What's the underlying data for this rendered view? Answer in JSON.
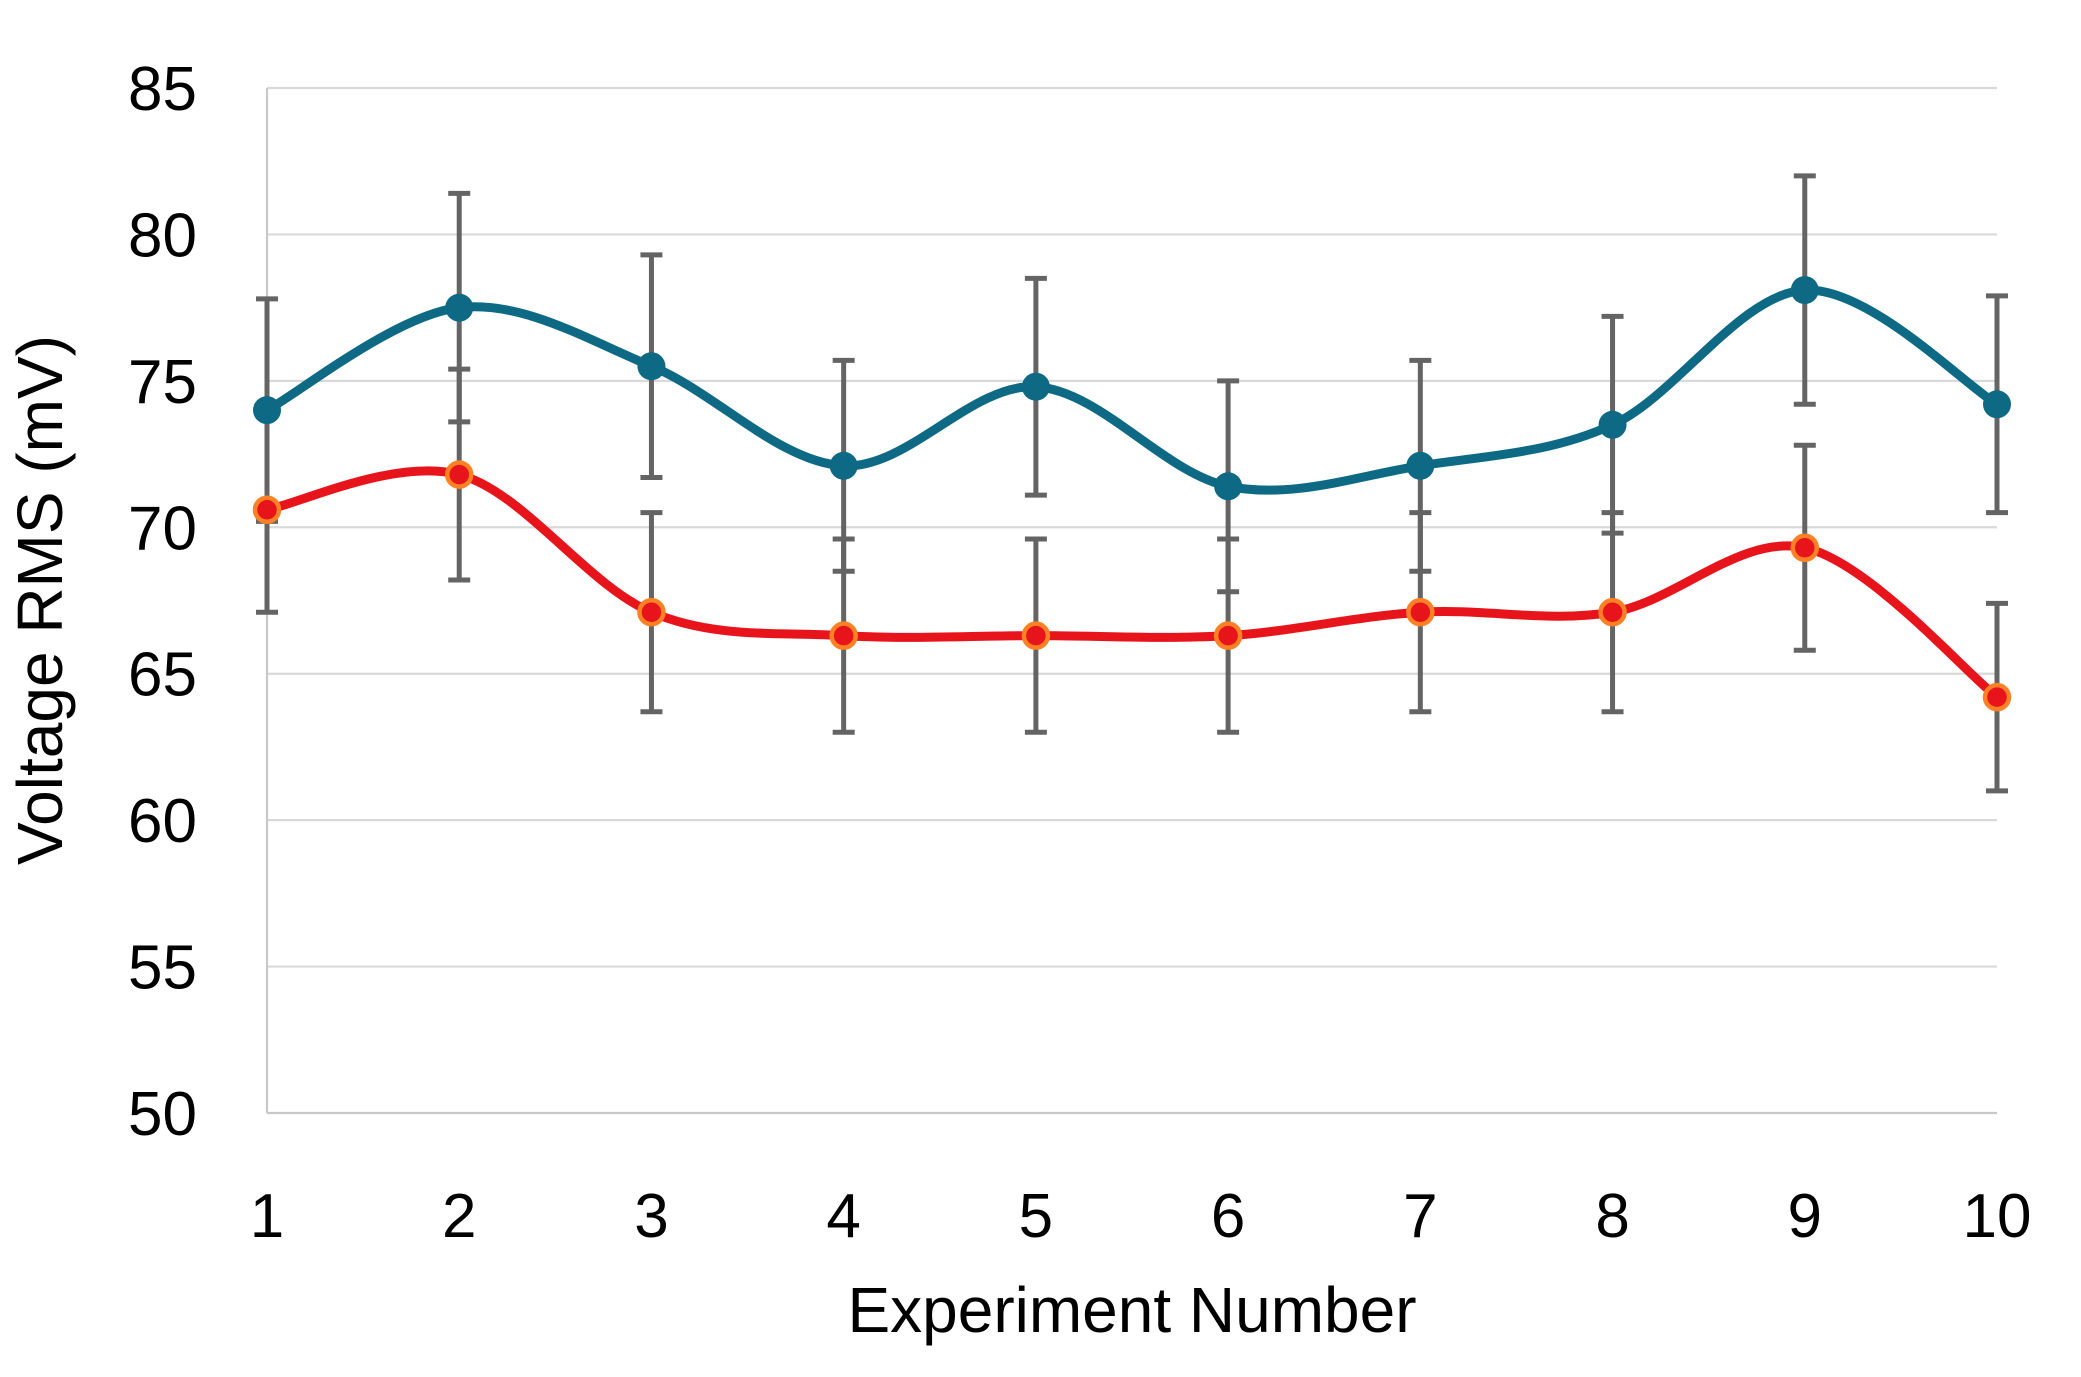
{
  "page": {
    "background": "#ffffff"
  },
  "chart_data": {
    "type": "line",
    "title": "",
    "xlabel": "Experiment Number",
    "ylabel": "Voltage RMS (mV)",
    "x": [
      1,
      2,
      3,
      4,
      5,
      6,
      7,
      8,
      9,
      10
    ],
    "x_tick_labels": [
      "1",
      "2",
      "3",
      "4",
      "5",
      "6",
      "7",
      "8",
      "9",
      "10"
    ],
    "y_ticks": [
      50,
      55,
      60,
      65,
      70,
      75,
      80,
      85
    ],
    "y_tick_labels": [
      "50",
      "55",
      "60",
      "65",
      "70",
      "75",
      "80",
      "85"
    ],
    "ylim": [
      50,
      85
    ],
    "xlim": [
      1,
      10
    ],
    "grid": "horizontal-light",
    "legend": "none",
    "line_style": "smooth",
    "error_bars": true,
    "series": [
      {
        "name": "blue-series",
        "color": "#0e6985",
        "marker": "filled-circle",
        "values": [
          74.0,
          77.5,
          75.5,
          72.1,
          74.8,
          71.4,
          72.1,
          73.5,
          78.1,
          74.2
        ],
        "error": [
          3.8,
          3.9,
          3.8,
          3.6,
          3.7,
          3.6,
          3.6,
          3.7,
          3.9,
          3.7
        ]
      },
      {
        "name": "red-series",
        "color": "#e8141b",
        "marker": "filled-circle-orange-edge",
        "marker_edge_color": "#ff8124",
        "values": [
          70.6,
          71.8,
          67.1,
          66.3,
          66.3,
          66.3,
          67.1,
          67.1,
          69.3,
          64.2
        ],
        "error": [
          3.5,
          3.6,
          3.4,
          3.3,
          3.3,
          3.3,
          3.4,
          3.4,
          3.5,
          3.2
        ]
      }
    ],
    "colors": {
      "error_bar": "#646464",
      "gridline": "#d9d9d9",
      "axis_line": "#c8c8c8",
      "text": "#000000"
    }
  }
}
